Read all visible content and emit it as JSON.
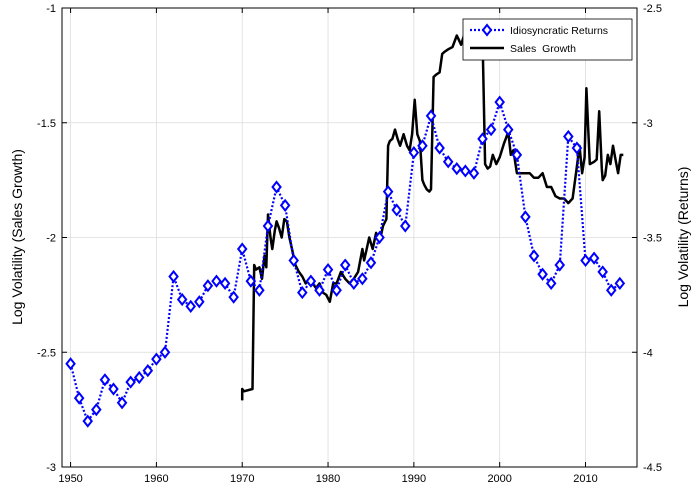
{
  "chart_data": {
    "type": "line",
    "title": "",
    "xlabel": "",
    "ylabel_left": "Log Volatility (Sales Growth)",
    "ylabel_right": "Log Volatility (Returns)",
    "xlim": [
      1949,
      2016
    ],
    "ylim_left": [
      -3,
      -1
    ],
    "ylim_right": [
      -4.5,
      -2.5
    ],
    "xticks": [
      1950,
      1960,
      1970,
      1980,
      1990,
      2000,
      2010
    ],
    "yticks_left": [
      -3,
      -2.5,
      -2,
      -1.5,
      -1
    ],
    "yticks_right": [
      -4.5,
      -4,
      -3.5,
      -3,
      -2.5
    ],
    "grid": true,
    "legend_position": "top-right",
    "series": [
      {
        "name": "Idiosyncratic Returns",
        "axis": "right",
        "color": "#0000ff",
        "style": "dotted-diamond",
        "x": [
          1950,
          1951,
          1952,
          1953,
          1954,
          1955,
          1956,
          1957,
          1958,
          1959,
          1960,
          1961,
          1962,
          1963,
          1964,
          1965,
          1966,
          1967,
          1968,
          1969,
          1970,
          1971,
          1972,
          1973,
          1974,
          1975,
          1976,
          1977,
          1978,
          1979,
          1980,
          1981,
          1982,
          1983,
          1984,
          1985,
          1986,
          1987,
          1988,
          1989,
          1990,
          1991,
          1992,
          1993,
          1994,
          1995,
          1996,
          1997,
          1998,
          1999,
          2000,
          2001,
          2002,
          2003,
          2004,
          2005,
          2006,
          2007,
          2008,
          2009,
          2010,
          2011,
          2012,
          2013,
          2014
        ],
        "y": [
          -4.05,
          -4.2,
          -4.3,
          -4.25,
          -4.12,
          -4.16,
          -4.22,
          -4.13,
          -4.11,
          -4.08,
          -4.03,
          -4.0,
          -3.67,
          -3.77,
          -3.8,
          -3.78,
          -3.71,
          -3.69,
          -3.7,
          -3.76,
          -3.55,
          -3.69,
          -3.73,
          -3.45,
          -3.28,
          -3.36,
          -3.6,
          -3.74,
          -3.69,
          -3.73,
          -3.64,
          -3.73,
          -3.62,
          -3.7,
          -3.68,
          -3.61,
          -3.5,
          -3.3,
          -3.38,
          -3.45,
          -3.13,
          -3.1,
          -2.97,
          -3.11,
          -3.17,
          -3.2,
          -3.21,
          -3.22,
          -3.07,
          -3.03,
          -2.91,
          -3.03,
          -3.14,
          -3.41,
          -3.58,
          -3.66,
          -3.7,
          -3.62,
          -3.06,
          -3.11,
          -3.6,
          -3.59,
          -3.65,
          -3.73,
          -3.7
        ]
      },
      {
        "name": "Sales  Growth",
        "axis": "left",
        "color": "#000000",
        "style": "solid",
        "x": [
          1970,
          1970,
          1970.2,
          1971.2,
          1971.4,
          1971.6,
          1972,
          1972.3,
          1972.6,
          1972.8,
          1973,
          1973.3,
          1973.5,
          1973.8,
          1974,
          1974.3,
          1974.6,
          1974.9,
          1975.2,
          1975.5,
          1975.8,
          1976.2,
          1976.6,
          1977,
          1977.4,
          1977.8,
          1978.2,
          1978.6,
          1979,
          1979.4,
          1979.8,
          1980.2,
          1980.6,
          1981,
          1981.5,
          1982,
          1982.5,
          1983,
          1983.5,
          1984,
          1984.2,
          1984.5,
          1984.8,
          1985.2,
          1985.6,
          1986,
          1986.4,
          1986.8,
          1987,
          1987.2,
          1987.5,
          1987.8,
          1988.1,
          1988.4,
          1988.8,
          1989.2,
          1989.5,
          1989.8,
          1990.1,
          1990.4,
          1990.7,
          1991,
          1991.2,
          1991.5,
          1991.8,
          1992,
          1992.3,
          1992.6,
          1993,
          1993.3,
          1993.6,
          1994,
          1994.5,
          1995,
          1995.5,
          1996,
          1996.5,
          1997,
          1997.5,
          1997.8,
          1998,
          1998.3,
          1998.6,
          1998.9,
          1999.2,
          1999.6,
          2000,
          2000.5,
          2001,
          2001.3,
          2001.6,
          2002,
          2002.5,
          2003,
          2003.5,
          2004,
          2004.5,
          2005,
          2005.5,
          2006,
          2006.5,
          2007,
          2007.5,
          2008,
          2008.5,
          2009,
          2009.3,
          2009.6,
          2009.9,
          2010.1,
          2010.5,
          2011,
          2011.3,
          2011.6,
          2011.9,
          2012,
          2012.3,
          2012.6,
          2012.9,
          2013.2,
          2013.5,
          2013.8,
          2014.1,
          2014.4
        ],
        "y": [
          -2.71,
          -2.66,
          -2.67,
          -2.66,
          -2.12,
          -2.14,
          -2.13,
          -2.18,
          -2.08,
          -2.13,
          -1.9,
          -2.0,
          -2.05,
          -1.97,
          -1.93,
          -1.96,
          -2.0,
          -1.92,
          -1.93,
          -2.0,
          -2.05,
          -2.12,
          -2.15,
          -2.17,
          -2.2,
          -2.18,
          -2.2,
          -2.22,
          -2.2,
          -2.24,
          -2.25,
          -2.28,
          -2.2,
          -2.2,
          -2.15,
          -2.18,
          -2.2,
          -2.18,
          -2.15,
          -2.05,
          -2.1,
          -2.05,
          -2.0,
          -2.05,
          -1.98,
          -2.02,
          -1.95,
          -1.92,
          -1.6,
          -1.58,
          -1.57,
          -1.53,
          -1.57,
          -1.6,
          -1.55,
          -1.6,
          -1.62,
          -1.55,
          -1.4,
          -1.55,
          -1.58,
          -1.75,
          -1.77,
          -1.79,
          -1.8,
          -1.79,
          -1.3,
          -1.29,
          -1.28,
          -1.2,
          -1.19,
          -1.18,
          -1.17,
          -1.12,
          -1.16,
          -1.1,
          -1.14,
          -1.12,
          -1.18,
          -1.15,
          -1.12,
          -1.68,
          -1.7,
          -1.69,
          -1.64,
          -1.68,
          -1.65,
          -1.59,
          -1.54,
          -1.64,
          -1.62,
          -1.72,
          -1.72,
          -1.72,
          -1.72,
          -1.74,
          -1.74,
          -1.72,
          -1.78,
          -1.78,
          -1.82,
          -1.83,
          -1.83,
          -1.85,
          -1.83,
          -1.69,
          -1.6,
          -1.72,
          -1.65,
          -1.35,
          -1.68,
          -1.67,
          -1.66,
          -1.45,
          -1.7,
          -1.75,
          -1.73,
          -1.64,
          -1.68,
          -1.6,
          -1.66,
          -1.72,
          -1.64,
          -1.64
        ]
      }
    ]
  }
}
